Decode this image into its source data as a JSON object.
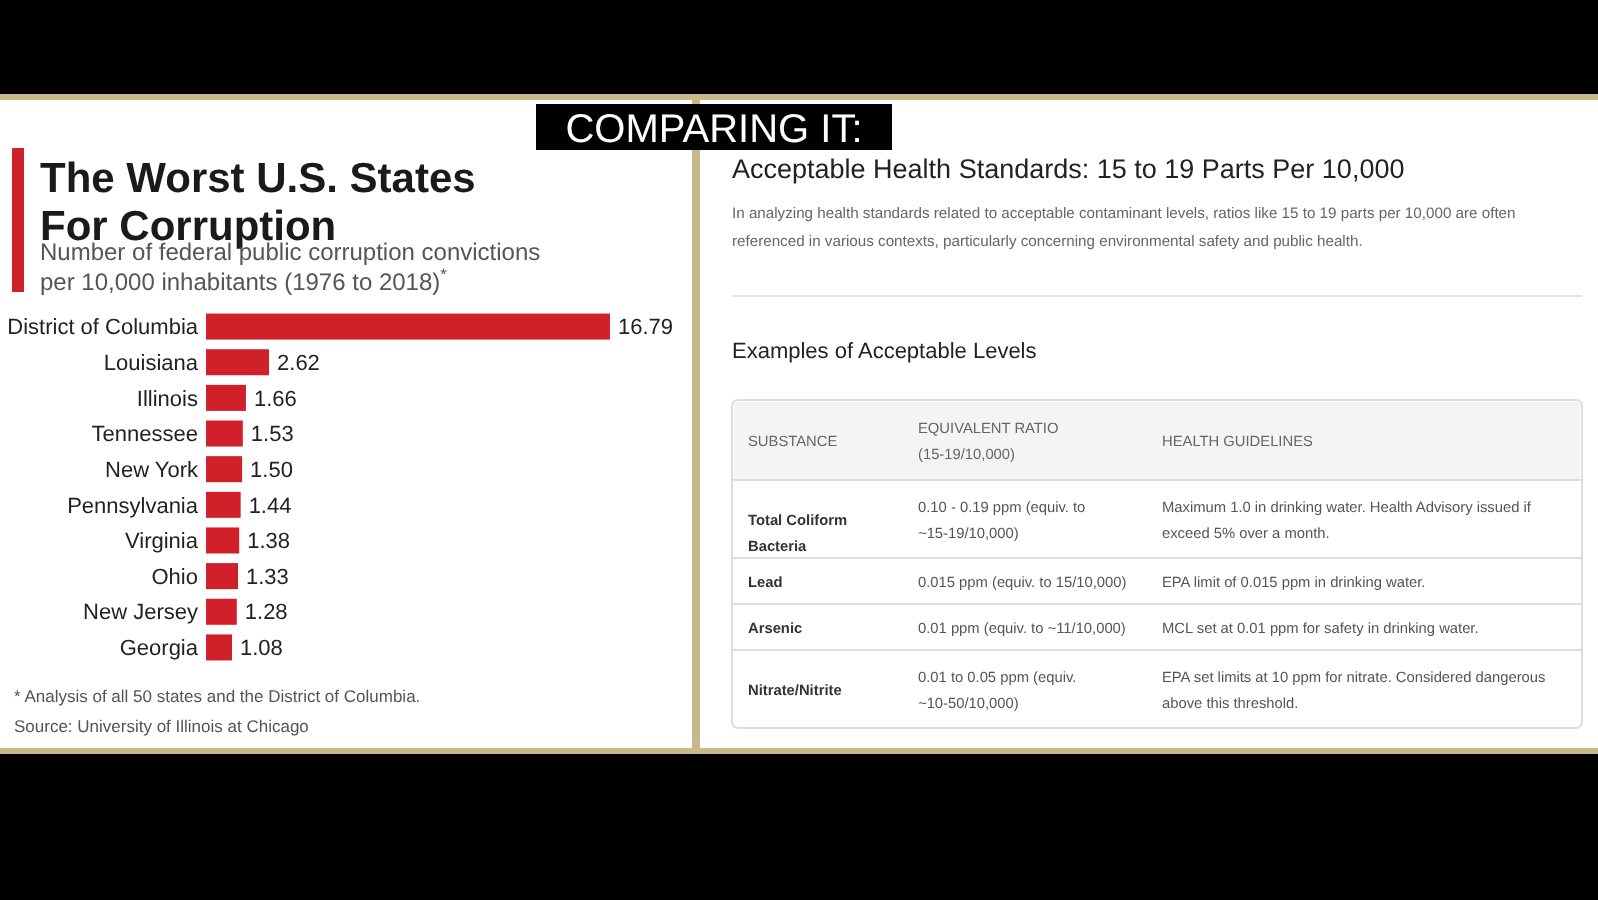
{
  "chart_data": [
    {
      "type": "bar",
      "orientation": "horizontal",
      "title": "The Worst U.S. States For Corruption",
      "subtitle": "Number of federal public corruption convictions per 10,000 inhabitants (1976 to 2018)$^{*}$",
      "categories": [
        "District of Columbia",
        "Louisiana",
        "Illinois",
        "Tennessee",
        "New York",
        "Pennsylvania",
        "Virginia",
        "Ohio",
        "New Jersey",
        "Georgia"
      ],
      "values": [
        16.79,
        2.62,
        1.66,
        1.53,
        1.5,
        1.44,
        1.38,
        1.33,
        1.28,
        1.08
      ],
      "color": "#d0202a",
      "value_labels": [
        "16.79",
        "2.62",
        "1.66",
        "1.53",
        "1.50",
        "1.44",
        "1.38",
        "1.33",
        "1.28",
        "1.08"
      ],
      "annotations": [
        "* Analysis of all 50 states and the District of Columbia.",
        "Source: University of Illinois at Chicago"
      ]
    },
    {
      "type": "other",
      "title": "Acceptable Health Standards: 15 to 19 Parts Per 10,000",
      "annotations": [
        "COMPARING IT:",
        "In analyzing health standards related to acceptable contaminant levels, ratios like 15 to 19 parts per 10,000 are often referenced in various contexts, particularly concerning environmental safety and public health.",
        "Examples of Acceptable Levels",
        "SUBSTANCE",
        "EQUIVALENT RATIO (15-19/10,000)",
        "HEALTH GUIDELINES",
        "Total Coliform Bacteria",
        "0.10 - 0.19 ppm (equiv. to ~15-19/10,000)",
        "Maximum 1.0 in drinking water. Health Advisory issued if exceed 5% over a month.",
        "Lead",
        "0.015 ppm (equiv. to 15/10,000)",
        "EPA limit of 0.015 ppm in drinking water.",
        "Arsenic",
        "0.01 ppm (equiv. to ~11/10,000)",
        "MCL set at 0.01 ppm for safety in drinking water.",
        "Nitrate/Nitrite",
        "0.01 to 0.05 ppm (equiv. ~10-50/10,000)",
        "EPA set limits at 10 ppm for nitrate. Considered dangerous above this threshold."
      ]
    }
  ]
}
